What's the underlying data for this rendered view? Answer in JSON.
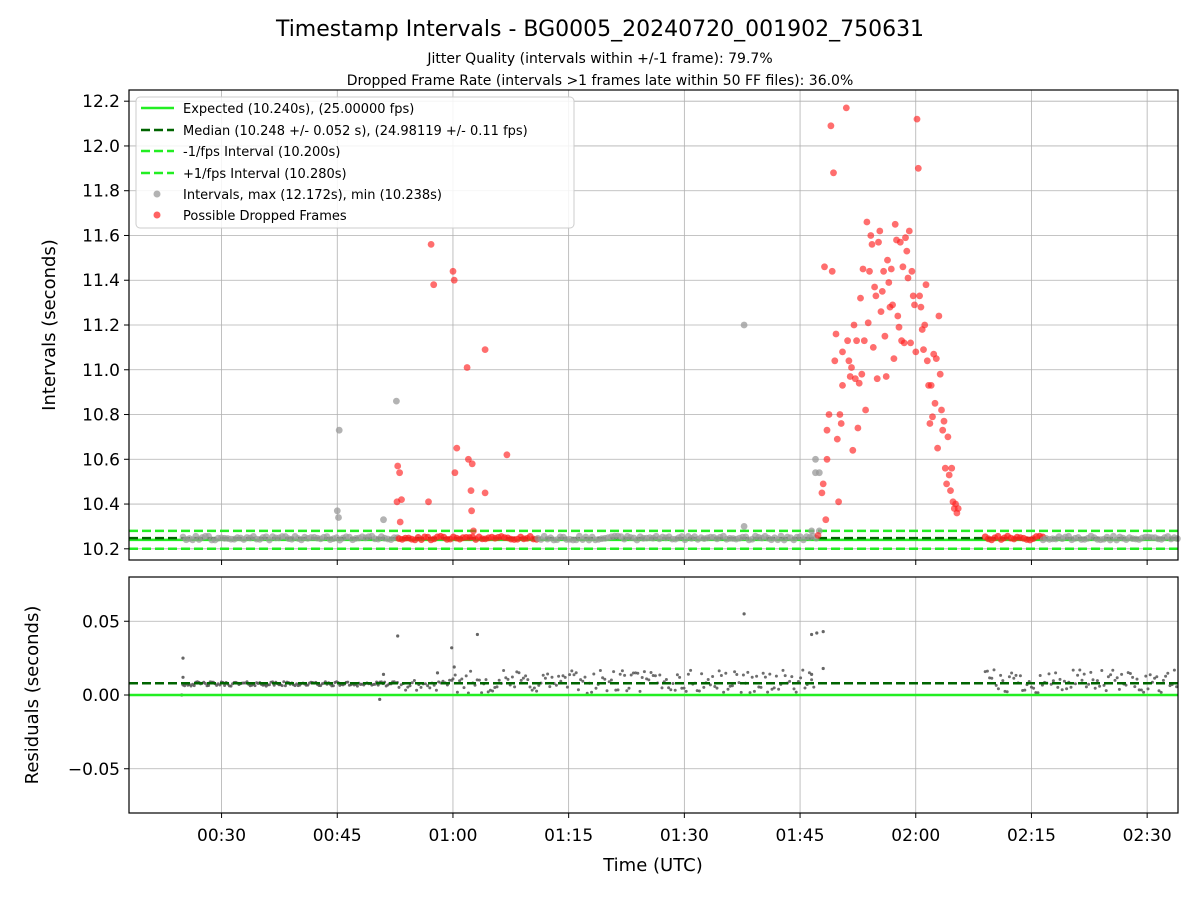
{
  "title": "Timestamp Intervals - BG0005_20240720_001902_750631",
  "subtitle_lines": [
    "Jitter Quality (intervals within +/-1 frame): 79.7%",
    "Dropped Frame Rate (intervals >1 frames late within 50 FF files): 36.0%"
  ],
  "colors": {
    "expected": "#22ee22",
    "median": "#006400",
    "fps_band": "#22ee22",
    "intervals": "#999999",
    "dropped": "#ff2020",
    "residual_points": "#555555",
    "grid": "#b0b0b0"
  },
  "chart_data": [
    {
      "type": "scatter",
      "ylabel": "Intervals (seconds)",
      "xlim": [
        "00:18:00",
        "02:34:00"
      ],
      "ylim": [
        10.15,
        12.25
      ],
      "yticks": [
        "10.2",
        "10.4",
        "10.6",
        "10.8",
        "11.0",
        "11.2",
        "11.4",
        "11.6",
        "11.8",
        "12.0",
        "12.2"
      ],
      "ytick_values": [
        10.2,
        10.4,
        10.6,
        10.8,
        11.0,
        11.2,
        11.4,
        11.6,
        11.8,
        12.0,
        12.2
      ],
      "grid": true,
      "legend_position": "upper-left",
      "legend": [
        "Expected (10.240s), (25.00000 fps)",
        "Median (10.248 +/- 0.052 s), (24.98119 +/- 0.11 fps)",
        "-1/fps Interval (10.200s)",
        "+1/fps Interval (10.280s)",
        "Intervals, max (12.172s), min (10.238s)",
        "Possible Dropped Frames"
      ],
      "hlines": [
        {
          "name": "Expected",
          "y": 10.24,
          "style": "solid"
        },
        {
          "name": "Median",
          "y": 10.248,
          "style": "dashed"
        },
        {
          "name": "-1/fps Interval",
          "y": 10.2,
          "style": "dashed"
        },
        {
          "name": "+1/fps Interval",
          "y": 10.28,
          "style": "dashed"
        }
      ],
      "baseline_ranges": [
        {
          "series": "intervals",
          "start": "00:25:00",
          "end": "00:53:00",
          "y": 10.248
        },
        {
          "series": "dropped",
          "start": "00:53:00",
          "end": "01:11:00",
          "y": 10.248
        },
        {
          "series": "intervals",
          "start": "01:11:00",
          "end": "01:47:30",
          "y": 10.248
        },
        {
          "series": "dropped",
          "start": "02:09:00",
          "end": "02:16:30",
          "y": 10.248
        },
        {
          "series": "intervals",
          "start": "02:16:30",
          "end": "02:34:00",
          "y": 10.248
        }
      ],
      "series": [
        {
          "name": "Intervals, max (12.172s), min (10.238s)",
          "points": [
            [
              "00:45:00",
              10.37
            ],
            [
              "00:45:10",
              10.34
            ],
            [
              "00:45:15",
              10.73
            ],
            [
              "00:51:00",
              10.33
            ],
            [
              "00:52:40",
              10.86
            ],
            [
              "01:37:45",
              11.2
            ],
            [
              "01:37:45",
              10.3
            ],
            [
              "01:46:30",
              10.28
            ],
            [
              "01:47:00",
              10.6
            ],
            [
              "01:47:00",
              10.54
            ],
            [
              "01:47:30",
              10.54
            ],
            [
              "01:47:30",
              10.28
            ]
          ]
        },
        {
          "name": "Possible Dropped Frames",
          "points": [
            [
              "00:52:50",
              10.57
            ],
            [
              "00:53:05",
              10.54
            ],
            [
              "00:53:10",
              10.32
            ],
            [
              "00:53:20",
              10.42
            ],
            [
              "00:52:45",
              10.41
            ],
            [
              "00:56:50",
              10.41
            ],
            [
              "00:57:10",
              11.56
            ],
            [
              "00:57:30",
              11.38
            ],
            [
              "01:00:00",
              11.44
            ],
            [
              "01:00:10",
              11.4
            ],
            [
              "01:00:15",
              10.54
            ],
            [
              "01:00:30",
              10.65
            ],
            [
              "01:01:50",
              11.01
            ],
            [
              "01:02:00",
              10.6
            ],
            [
              "01:02:30",
              10.58
            ],
            [
              "01:02:20",
              10.46
            ],
            [
              "01:02:25",
              10.37
            ],
            [
              "01:02:40",
              10.28
            ],
            [
              "01:04:10",
              11.09
            ],
            [
              "01:04:10",
              10.45
            ],
            [
              "01:07:00",
              10.62
            ],
            [
              "01:47:20",
              10.26
            ],
            [
              "01:47:50",
              10.45
            ],
            [
              "01:48:00",
              10.49
            ],
            [
              "01:48:10",
              11.46
            ],
            [
              "01:48:20",
              10.33
            ],
            [
              "01:48:30",
              10.6
            ],
            [
              "01:48:30",
              10.73
            ],
            [
              "01:48:45",
              10.8
            ],
            [
              "01:49:00",
              12.09
            ],
            [
              "01:49:10",
              11.44
            ],
            [
              "01:49:20",
              11.88
            ],
            [
              "01:49:30",
              11.04
            ],
            [
              "01:49:40",
              11.16
            ],
            [
              "01:49:50",
              10.69
            ],
            [
              "01:50:00",
              10.41
            ],
            [
              "01:50:10",
              10.8
            ],
            [
              "01:50:20",
              10.76
            ],
            [
              "01:50:30",
              10.93
            ],
            [
              "01:50:30",
              11.08
            ],
            [
              "01:51:00",
              12.17
            ],
            [
              "01:51:10",
              11.13
            ],
            [
              "01:51:20",
              11.04
            ],
            [
              "01:51:30",
              10.97
            ],
            [
              "01:51:40",
              11.01
            ],
            [
              "01:51:50",
              10.64
            ],
            [
              "01:52:00",
              11.2
            ],
            [
              "01:52:10",
              10.96
            ],
            [
              "01:52:20",
              11.13
            ],
            [
              "01:52:30",
              10.74
            ],
            [
              "01:52:40",
              10.94
            ],
            [
              "01:52:50",
              11.32
            ],
            [
              "01:53:00",
              10.98
            ],
            [
              "01:53:10",
              11.45
            ],
            [
              "01:53:20",
              11.13
            ],
            [
              "01:53:30",
              10.82
            ],
            [
              "01:53:40",
              11.66
            ],
            [
              "01:53:50",
              11.21
            ],
            [
              "01:54:00",
              11.44
            ],
            [
              "01:54:10",
              11.6
            ],
            [
              "01:54:20",
              11.56
            ],
            [
              "01:54:30",
              11.1
            ],
            [
              "01:54:40",
              11.37
            ],
            [
              "01:54:50",
              11.33
            ],
            [
              "01:55:00",
              10.96
            ],
            [
              "01:55:10",
              11.57
            ],
            [
              "01:55:20",
              11.62
            ],
            [
              "01:55:30",
              11.26
            ],
            [
              "01:55:40",
              11.35
            ],
            [
              "01:55:50",
              11.44
            ],
            [
              "01:56:00",
              11.15
            ],
            [
              "01:56:10",
              10.97
            ],
            [
              "01:56:20",
              11.49
            ],
            [
              "01:56:30",
              11.39
            ],
            [
              "01:56:40",
              11.28
            ],
            [
              "01:56:50",
              11.45
            ],
            [
              "01:57:00",
              11.29
            ],
            [
              "01:57:10",
              11.05
            ],
            [
              "01:57:20",
              11.65
            ],
            [
              "01:57:30",
              11.58
            ],
            [
              "01:57:40",
              11.24
            ],
            [
              "01:57:50",
              11.19
            ],
            [
              "01:58:00",
              11.57
            ],
            [
              "01:58:10",
              11.13
            ],
            [
              "01:58:20",
              11.46
            ],
            [
              "01:58:30",
              11.12
            ],
            [
              "01:58:40",
              11.59
            ],
            [
              "01:58:50",
              11.53
            ],
            [
              "01:59:00",
              11.41
            ],
            [
              "01:59:10",
              11.62
            ],
            [
              "01:59:20",
              11.12
            ],
            [
              "01:59:30",
              11.44
            ],
            [
              "01:59:40",
              11.33
            ],
            [
              "01:59:50",
              11.29
            ],
            [
              "02:00:00",
              11.08
            ],
            [
              "02:00:10",
              12.12
            ],
            [
              "02:00:20",
              11.9
            ],
            [
              "02:00:30",
              11.33
            ],
            [
              "02:00:40",
              11.28
            ],
            [
              "02:00:50",
              11.18
            ],
            [
              "02:01:00",
              11.09
            ],
            [
              "02:01:10",
              11.2
            ],
            [
              "02:01:20",
              11.38
            ],
            [
              "02:01:30",
              11.04
            ],
            [
              "02:01:40",
              10.93
            ],
            [
              "02:01:50",
              10.76
            ],
            [
              "02:02:00",
              10.93
            ],
            [
              "02:02:10",
              10.79
            ],
            [
              "02:02:20",
              11.07
            ],
            [
              "02:02:30",
              10.85
            ],
            [
              "02:02:40",
              11.05
            ],
            [
              "02:02:50",
              10.65
            ],
            [
              "02:03:00",
              11.24
            ],
            [
              "02:03:10",
              10.98
            ],
            [
              "02:03:20",
              10.82
            ],
            [
              "02:03:30",
              10.73
            ],
            [
              "02:03:40",
              10.77
            ],
            [
              "02:03:50",
              10.56
            ],
            [
              "02:04:00",
              10.49
            ],
            [
              "02:04:10",
              10.7
            ],
            [
              "02:04:20",
              10.53
            ],
            [
              "02:04:30",
              10.46
            ],
            [
              "02:04:40",
              10.56
            ],
            [
              "02:04:50",
              10.41
            ],
            [
              "02:05:00",
              10.38
            ],
            [
              "02:05:10",
              10.4
            ],
            [
              "02:05:20",
              10.36
            ],
            [
              "02:05:30",
              10.38
            ]
          ]
        }
      ]
    },
    {
      "type": "scatter",
      "xlabel": "Time (UTC)",
      "ylabel": "Residuals (seconds)",
      "xlim": [
        "00:18:00",
        "02:34:00"
      ],
      "ylim": [
        -0.08,
        0.08
      ],
      "yticks": [
        "−0.05",
        "0.00",
        "0.05"
      ],
      "ytick_values": [
        -0.05,
        0.0,
        0.05
      ],
      "xticks": [
        "00:30",
        "00:45",
        "01:00",
        "01:15",
        "01:30",
        "01:45",
        "02:00",
        "02:15",
        "02:30"
      ],
      "grid": true,
      "hlines": [
        {
          "name": "Expected",
          "y": 0.0,
          "style": "solid"
        },
        {
          "name": "Median",
          "y": 0.008,
          "style": "dashed"
        }
      ],
      "residual_bands": [
        {
          "start": "00:25:00",
          "end": "00:53:00",
          "low": 0.006,
          "high": 0.009
        },
        {
          "start": "00:53:00",
          "end": "01:00:00",
          "low": 0.003,
          "high": 0.01
        },
        {
          "start": "01:00:00",
          "end": "01:47:00",
          "low": 0.001,
          "high": 0.017
        },
        {
          "start": "02:09:00",
          "end": "02:34:00",
          "low": 0.001,
          "high": 0.017
        }
      ],
      "series": [
        {
          "name": "Residuals",
          "points": [
            [
              "00:25:00",
              0.025
            ],
            [
              "00:25:00",
              0.012
            ],
            [
              "00:24:50",
              0.0
            ],
            [
              "00:52:50",
              0.04
            ],
            [
              "00:51:00",
              0.014
            ],
            [
              "00:50:30",
              -0.003
            ],
            [
              "00:59:50",
              0.032
            ],
            [
              "01:00:10",
              0.019
            ],
            [
              "00:58:00",
              0.015
            ],
            [
              "01:03:10",
              0.041
            ],
            [
              "01:37:45",
              0.055
            ],
            [
              "01:46:30",
              0.041
            ],
            [
              "01:46:30",
              0.014
            ],
            [
              "01:47:10",
              0.042
            ],
            [
              "01:48:00",
              0.043
            ],
            [
              "01:48:00",
              0.018
            ]
          ]
        }
      ]
    }
  ]
}
